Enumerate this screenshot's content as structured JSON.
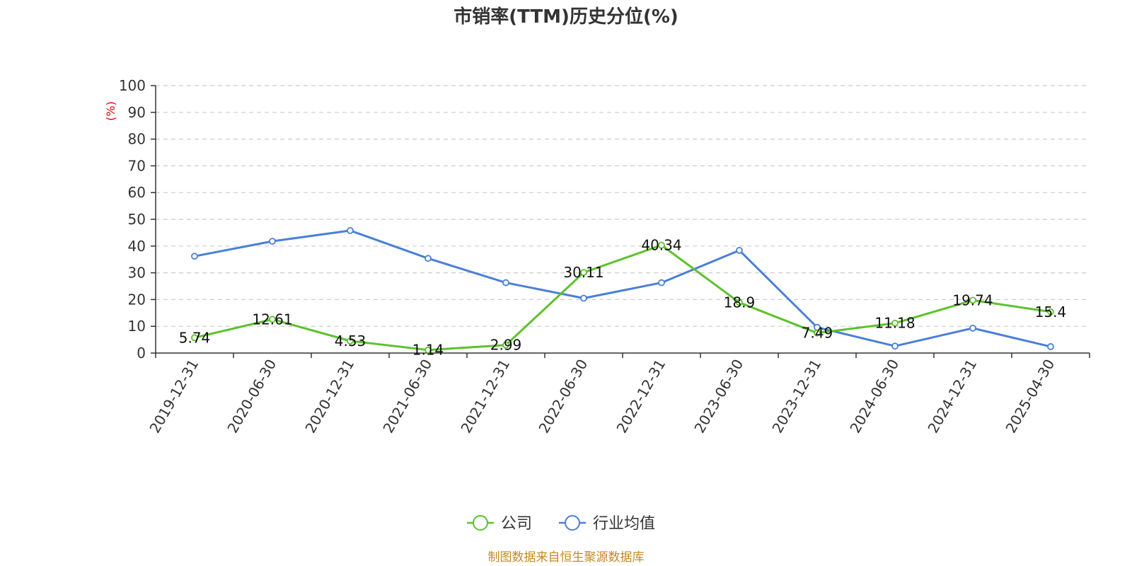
{
  "chart_data": {
    "type": "line",
    "title": "市销率(TTM)历史分位(%)",
    "ylabel": "(%)",
    "ylim": [
      0,
      100
    ],
    "yticks": [
      0,
      10,
      20,
      30,
      40,
      50,
      60,
      70,
      80,
      90,
      100
    ],
    "grid": true,
    "legend_position": "bottom",
    "categories": [
      "2019-12-31",
      "2020-06-30",
      "2020-12-31",
      "2021-06-30",
      "2021-12-31",
      "2022-06-30",
      "2022-12-31",
      "2023-06-30",
      "2023-12-31",
      "2024-06-30",
      "2024-12-31",
      "2025-04-30"
    ],
    "series": [
      {
        "name": "公司",
        "color": "#5cc22b",
        "values": [
          5.74,
          12.61,
          4.53,
          1.14,
          2.99,
          30.11,
          40.34,
          18.9,
          7.49,
          11.18,
          19.74,
          15.4
        ],
        "labels": [
          "5.74",
          "12.61",
          "4.53",
          "1.14",
          "2.99",
          "30.11",
          "40.34",
          "18.9",
          "7.49",
          "11.18",
          "19.74",
          "15.4"
        ]
      },
      {
        "name": "行业均值",
        "color": "#4a7fd8",
        "values": [
          36.2,
          41.8,
          45.8,
          35.4,
          26.3,
          20.5,
          26.3,
          38.4,
          9.6,
          2.6,
          9.3,
          2.4
        ]
      }
    ],
    "source": "制图数据来自恒生聚源数据库",
    "source_color": "#c48a1e",
    "ylabel_color": "#e00000"
  }
}
